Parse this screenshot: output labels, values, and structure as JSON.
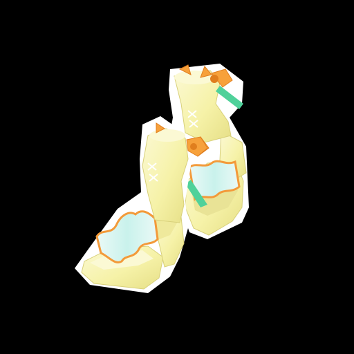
{
  "scene": {
    "subject": "pair-of-yellow-heeled-sandals",
    "colors": {
      "background": "#000000",
      "outline": "#ffffff",
      "shoe_yellow": "#f6f2a8",
      "shoe_yellow_shade": "#e6df86",
      "shoe_yellow_light": "#fbf9d4",
      "ruffle_fill": "#c9f2ec",
      "ruffle_fill_light": "#eaf9f6",
      "ruffle_trim": "#f39a3a",
      "bow_orange": "#f7a13b",
      "bow_orange_dark": "#e07e1e",
      "ribbon_green": "#4fd19a",
      "lacing": "#ffffff"
    }
  }
}
